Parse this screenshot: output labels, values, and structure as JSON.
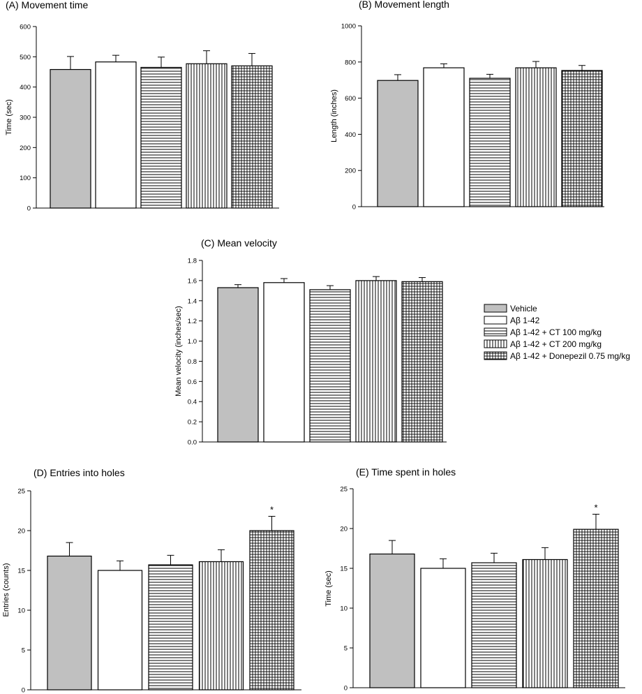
{
  "legend": {
    "entries": [
      {
        "label": "Vehicle",
        "pattern": "gray"
      },
      {
        "label": "Aβ 1-42",
        "pattern": "white"
      },
      {
        "label": "Aβ 1-42 + CT 100 mg/kg",
        "pattern": "hlines"
      },
      {
        "label": "Aβ 1-42 + CT 200 mg/kg",
        "pattern": "vlines"
      },
      {
        "label": "Aβ 1-42 + Donepezil 0.75 mg/kg",
        "pattern": "grid"
      }
    ]
  },
  "colors": {
    "vehicle_fill": "#c0c0c0",
    "bar_stroke": "#000000"
  },
  "chart_data": [
    {
      "type": "bar",
      "title": "(A) Movement time",
      "xlabel": "",
      "ylabel": "Time (sec)",
      "ylim": [
        0,
        600
      ],
      "yticks": [
        "0",
        "100",
        "200",
        "300",
        "400",
        "500",
        "600"
      ],
      "categories": [
        "Vehicle",
        "Aβ 1-42",
        "Aβ 1-42 + CT 100 mg/kg",
        "Aβ 1-42 + CT 200 mg/kg",
        "Aβ 1-42 + Donepezil 0.75 mg/kg"
      ],
      "values": [
        458,
        483,
        465,
        477,
        470
      ],
      "errors": [
        43,
        22,
        34,
        43,
        41
      ],
      "significance": [
        "",
        "",
        "",
        "",
        ""
      ],
      "grid": false
    },
    {
      "type": "bar",
      "title": "(B) Movement length",
      "xlabel": "",
      "ylabel": "Length (inches)",
      "ylim": [
        0,
        1000
      ],
      "yticks": [
        "0",
        "200",
        "400",
        "600",
        "800",
        "1000"
      ],
      "categories": [
        "Vehicle",
        "Aβ 1-42",
        "Aβ 1-42 + CT 100 mg/kg",
        "Aβ 1-42 + CT 200 mg/kg",
        "Aβ 1-42 + Donepezil 0.75 mg/kg"
      ],
      "values": [
        698,
        768,
        710,
        768,
        753
      ],
      "errors": [
        32,
        22,
        22,
        35,
        28
      ],
      "significance": [
        "",
        "",
        "",
        "",
        ""
      ],
      "grid": false
    },
    {
      "type": "bar",
      "title": "(C) Mean velocity",
      "xlabel": "",
      "ylabel": "Mean velocity (inches/sec)",
      "ylim": [
        0,
        1.8
      ],
      "yticks": [
        "0.0",
        "0.2",
        "0.4",
        "0.6",
        "0.8",
        "1.0",
        "1.2",
        "1.4",
        "1.6",
        "1.8"
      ],
      "categories": [
        "Vehicle",
        "Aβ 1-42",
        "Aβ 1-42 + CT 100 mg/kg",
        "Aβ 1-42 + CT 200 mg/kg",
        "Aβ 1-42 + Donepezil 0.75 mg/kg"
      ],
      "values": [
        1.53,
        1.58,
        1.51,
        1.6,
        1.59
      ],
      "errors": [
        0.03,
        0.04,
        0.04,
        0.04,
        0.04
      ],
      "significance": [
        "",
        "",
        "",
        "",
        ""
      ],
      "grid": false
    },
    {
      "type": "bar",
      "title": "(D) Entries into holes",
      "xlabel": "",
      "ylabel": "Entries (counts)",
      "ylim": [
        0,
        25
      ],
      "yticks": [
        "0",
        "5",
        "10",
        "15",
        "20",
        "25"
      ],
      "categories": [
        "Vehicle",
        "Aβ 1-42",
        "Aβ 1-42 + CT 100 mg/kg",
        "Aβ 1-42 + CT 200 mg/kg",
        "Aβ 1-42 + Donepezil 0.75 mg/kg"
      ],
      "values": [
        16.8,
        15.0,
        15.7,
        16.1,
        20.0
      ],
      "errors": [
        1.7,
        1.2,
        1.2,
        1.5,
        1.8
      ],
      "significance": [
        "",
        "",
        "",
        "",
        "*"
      ],
      "grid": false
    },
    {
      "type": "bar",
      "title": "(E) Time spent in holes",
      "xlabel": "",
      "ylabel": "Time (sec)",
      "ylim": [
        0,
        25
      ],
      "yticks": [
        "0",
        "5",
        "10",
        "15",
        "20",
        "25"
      ],
      "categories": [
        "Vehicle",
        "Aβ 1-42",
        "Aβ 1-42 + CT 100 mg/kg",
        "Aβ 1-42 + CT 200 mg/kg",
        "Aβ 1-42 + Donepezil 0.75 mg/kg"
      ],
      "values": [
        16.8,
        15.0,
        15.7,
        16.1,
        19.9
      ],
      "errors": [
        1.7,
        1.2,
        1.2,
        1.5,
        1.9
      ],
      "significance": [
        "",
        "",
        "",
        "",
        "*"
      ],
      "grid": false
    }
  ]
}
